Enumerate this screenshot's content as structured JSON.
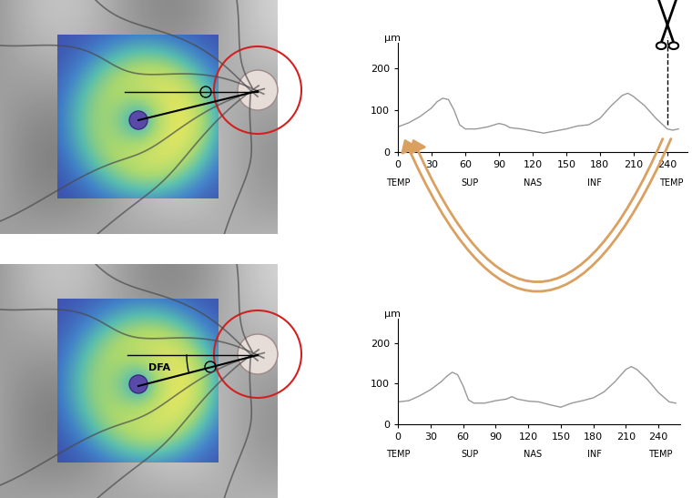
{
  "chart_data": [
    {
      "type": "line",
      "ylabel": "µm",
      "color": "#999999",
      "cut_x": 240,
      "x": [
        0,
        10,
        20,
        30,
        35,
        40,
        45,
        50,
        55,
        60,
        70,
        80,
        90,
        95,
        100,
        110,
        120,
        130,
        140,
        150,
        160,
        170,
        180,
        190,
        200,
        205,
        210,
        220,
        230,
        240,
        245,
        250
      ],
      "values": [
        60,
        70,
        85,
        105,
        120,
        128,
        125,
        100,
        65,
        55,
        55,
        60,
        68,
        65,
        58,
        55,
        50,
        45,
        50,
        55,
        62,
        65,
        80,
        110,
        135,
        140,
        132,
        110,
        80,
        55,
        52,
        55
      ],
      "xlim": [
        0,
        258
      ],
      "xticks": [
        0,
        30,
        60,
        90,
        120,
        150,
        180,
        210,
        240
      ],
      "x2ticks": [
        {
          "value": 0,
          "label": "TEMP"
        },
        {
          "value": 64,
          "label": "SUP"
        },
        {
          "value": 120,
          "label": "NAS"
        },
        {
          "value": 175,
          "label": "INF"
        },
        {
          "value": 244,
          "label": "TEMP"
        }
      ],
      "ylim": [
        0,
        260
      ],
      "yticks": [
        0,
        100,
        200
      ]
    },
    {
      "type": "line",
      "ylabel": "µm",
      "color": "#999999",
      "x": [
        0,
        10,
        20,
        30,
        40,
        45,
        50,
        55,
        60,
        65,
        70,
        80,
        90,
        100,
        105,
        110,
        120,
        130,
        140,
        150,
        160,
        170,
        180,
        190,
        200,
        210,
        215,
        220,
        230,
        240,
        250,
        256
      ],
      "values": [
        55,
        58,
        70,
        85,
        105,
        118,
        128,
        122,
        95,
        60,
        52,
        52,
        58,
        62,
        68,
        62,
        57,
        55,
        48,
        42,
        52,
        58,
        65,
        80,
        105,
        135,
        142,
        135,
        110,
        78,
        55,
        52
      ],
      "xlim": [
        0,
        260
      ],
      "xticks": [
        0,
        30,
        60,
        90,
        120,
        150,
        180,
        210,
        240
      ],
      "x2ticks": [
        {
          "value": 0,
          "label": "TEMP"
        },
        {
          "value": 66,
          "label": "SUP"
        },
        {
          "value": 124,
          "label": "NAS"
        },
        {
          "value": 181,
          "label": "INF"
        },
        {
          "value": 242,
          "label": "TEMP"
        }
      ],
      "ylim": [
        0,
        260
      ],
      "yticks": [
        0,
        100,
        200
      ]
    }
  ],
  "fundus_images": [
    {
      "texts": []
    },
    {
      "texts": [
        "DFA"
      ]
    }
  ]
}
